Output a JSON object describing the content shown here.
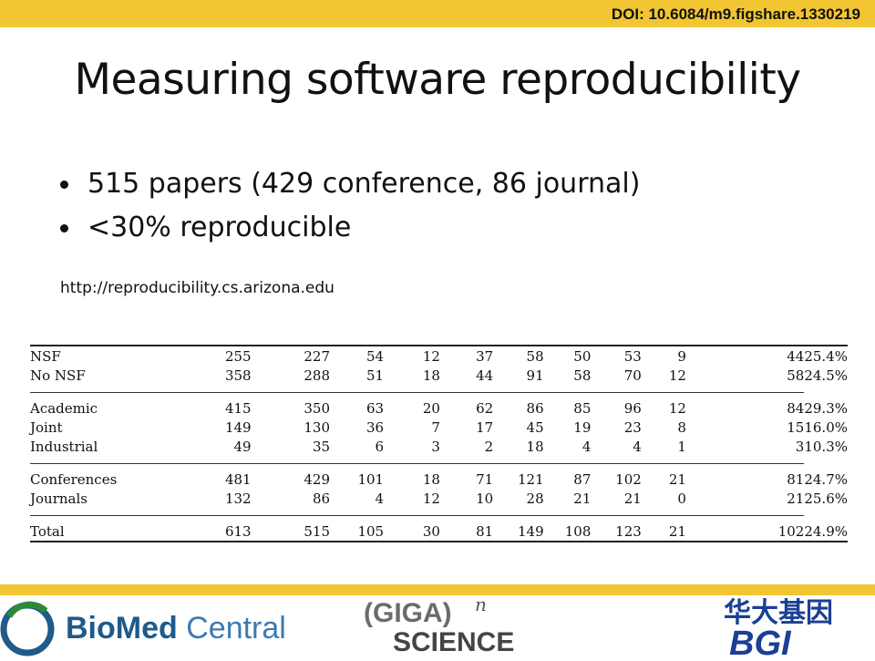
{
  "doi": "DOI: 10.6084/m9.figshare.1330219",
  "title": "Measuring software reproducibility",
  "bullets": [
    "515 papers  (429 conference, 86 journal)",
    "<30% reproducible"
  ],
  "url": "http://reproducibility.cs.arizona.edu",
  "table": {
    "groups": [
      [
        {
          "label": "NSF",
          "values": [
            "255",
            "227",
            "54",
            "12",
            "37",
            "58",
            "50",
            "53",
            "9",
            "44",
            "25.4%"
          ]
        },
        {
          "label": "No NSF",
          "values": [
            "358",
            "288",
            "51",
            "18",
            "44",
            "91",
            "58",
            "70",
            "12",
            "58",
            "24.5%"
          ]
        }
      ],
      [
        {
          "label": "Academic",
          "values": [
            "415",
            "350",
            "63",
            "20",
            "62",
            "86",
            "85",
            "96",
            "12",
            "84",
            "29.3%"
          ]
        },
        {
          "label": "Joint",
          "values": [
            "149",
            "130",
            "36",
            "7",
            "17",
            "45",
            "19",
            "23",
            "8",
            "15",
            "16.0%"
          ]
        },
        {
          "label": "Industrial",
          "values": [
            "49",
            "35",
            "6",
            "3",
            "2",
            "18",
            "4",
            "4",
            "1",
            "3",
            "10.3%"
          ]
        }
      ],
      [
        {
          "label": "Conferences",
          "values": [
            "481",
            "429",
            "101",
            "18",
            "71",
            "121",
            "87",
            "102",
            "21",
            "81",
            "24.7%"
          ]
        },
        {
          "label": "Journals",
          "values": [
            "132",
            "86",
            "4",
            "12",
            "10",
            "28",
            "21",
            "21",
            "0",
            "21",
            "25.6%"
          ]
        }
      ],
      [
        {
          "label": "Total",
          "values": [
            "613",
            "515",
            "105",
            "30",
            "81",
            "149",
            "108",
            "123",
            "21",
            "102",
            "24.9%"
          ]
        }
      ]
    ]
  },
  "logos": {
    "biomed_bold": "BioMed",
    "biomed_light": "Central",
    "giga_top": "(GIGA)",
    "giga_sup": "n",
    "giga_bottom": "SCIENCE",
    "bgi_chinese": "华大基因",
    "bgi_latin": "BGI"
  },
  "colors": {
    "accent_bar": "#f2c632",
    "biomed_blue": "#1f5a8a",
    "biomed_green": "#2e8a3a",
    "bgi_blue": "#1a3f94"
  }
}
